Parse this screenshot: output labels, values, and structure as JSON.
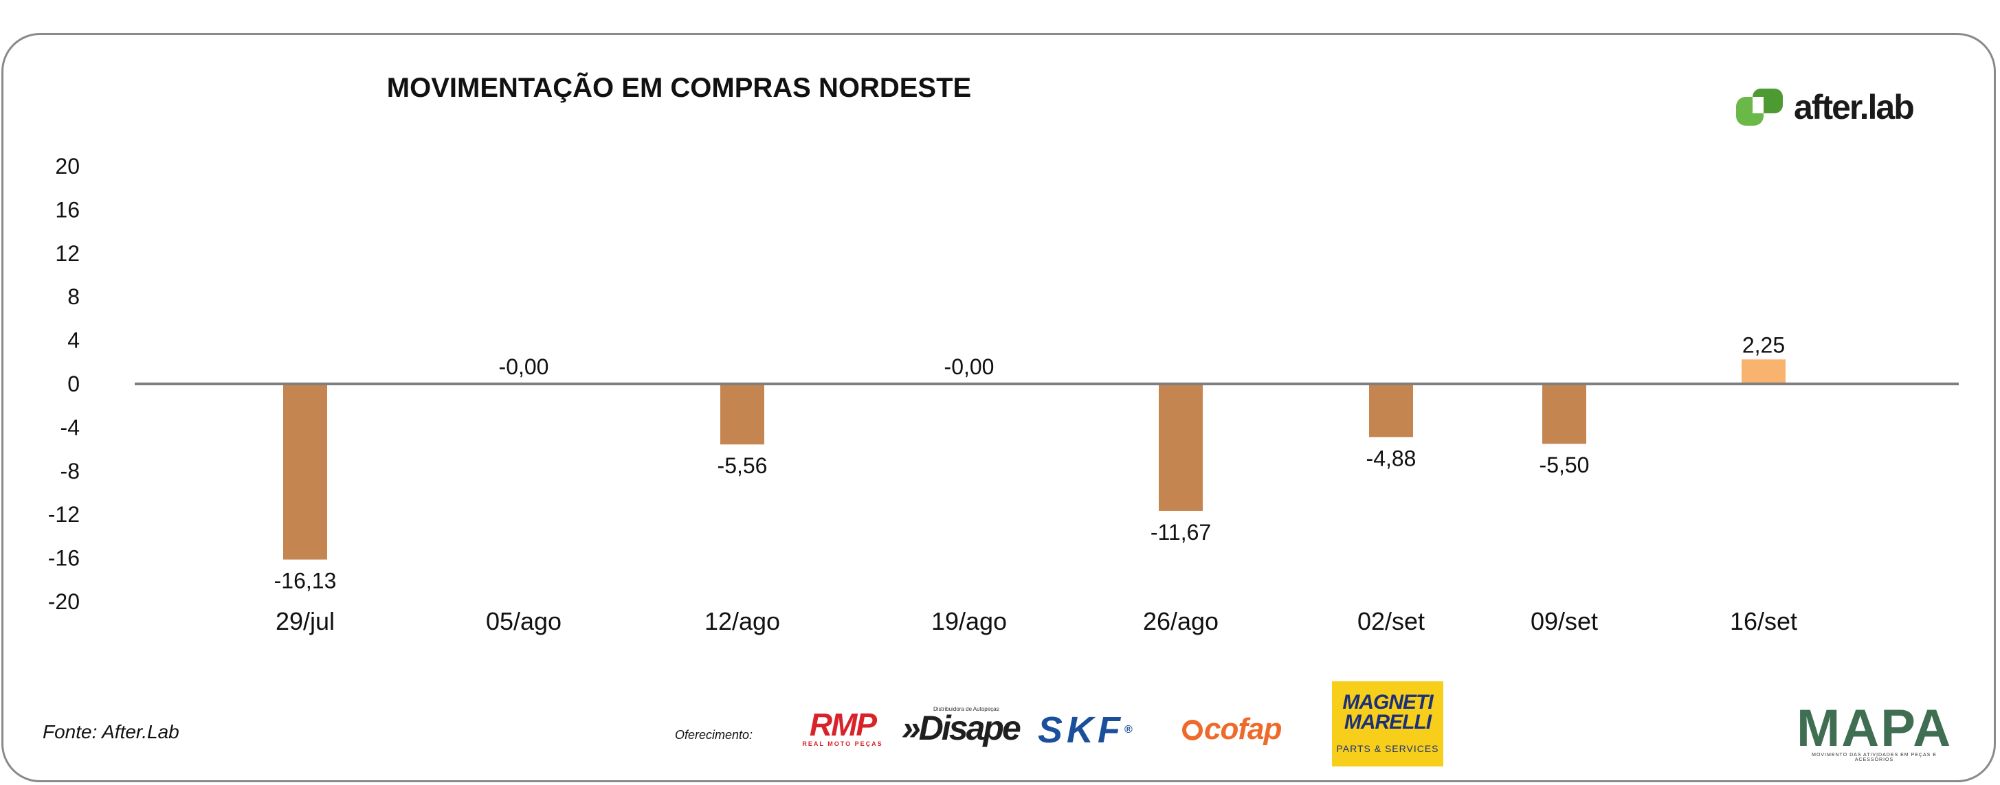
{
  "chart_data": {
    "type": "bar",
    "title": "MOVIMENTAÇÃO EM COMPRAS NORDESTE",
    "categories": [
      "29/jul",
      "05/ago",
      "12/ago",
      "19/ago",
      "26/ago",
      "02/set",
      "09/set",
      "16/set"
    ],
    "values": [
      -16.13,
      -0.0,
      -5.56,
      -0.0,
      -11.67,
      -4.88,
      -5.5,
      2.25
    ],
    "data_labels": [
      "-16,13",
      "-0,00",
      "-5,56",
      "-0,00",
      "-11,67",
      "-4,88",
      "-5,50",
      "2,25"
    ],
    "ylim": [
      -20,
      20
    ],
    "yticks": [
      20,
      16,
      12,
      8,
      4,
      0,
      -4,
      -8,
      -12,
      -16,
      -20
    ],
    "ytick_labels": [
      "20",
      "16",
      "12",
      "8",
      "4",
      "0",
      "-4",
      "-8",
      "-12",
      "-16",
      "-20"
    ],
    "xlabel": "",
    "ylabel": "",
    "grid": false,
    "colors": {
      "negative": "#c48550",
      "positive": "#f8b36f",
      "axis": "#7f7f7f"
    }
  },
  "source_text": "Fonte: After.Lab",
  "sponsor_label": "Oferecimento:",
  "logos": {
    "afterlab": {
      "text": "after.lab",
      "color": "#6ab847"
    },
    "rmp": {
      "text": "RMP",
      "subtext": "REAL MOTO PEÇAS"
    },
    "disape": {
      "text": "»Disape",
      "tagline": "Distribuidora de Autopeças"
    },
    "skf": {
      "text": "SKF",
      "mark": "®"
    },
    "cofap": {
      "text": "cofap"
    },
    "magneti": {
      "line1": "MAGNETI",
      "line2": "MARELLI",
      "subtext": "PARTS & SERVICES"
    },
    "mapa": {
      "text": "MAPA",
      "subtext": "MOVIMENTO DAS ATIVIDADES EM PEÇAS E ACESSÓRIOS"
    }
  }
}
